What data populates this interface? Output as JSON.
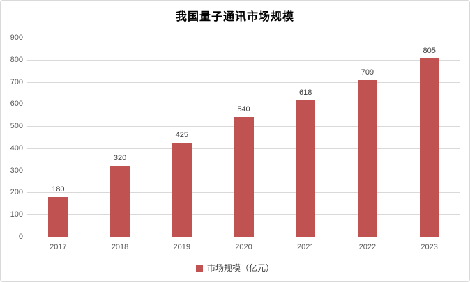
{
  "chart_data": {
    "type": "bar",
    "title": "我国量子通讯市场规模",
    "categories": [
      "2017",
      "2018",
      "2019",
      "2020",
      "2021",
      "2022",
      "2023"
    ],
    "series": [
      {
        "name": "市场规模（亿元）",
        "values": [
          180,
          320,
          425,
          540,
          618,
          709,
          805
        ]
      }
    ],
    "legend": "市场规模（亿元）",
    "legend_position": "bottom",
    "xlabel": "",
    "ylabel": "",
    "ylim": [
      0,
      900
    ],
    "y_tick_step": 100,
    "y_ticks": [
      0,
      100,
      200,
      300,
      400,
      500,
      600,
      700,
      800,
      900
    ],
    "grid": "horizontal",
    "data_labels_shown": true
  },
  "colors": {
    "bar": "#c15252",
    "gridline": "#d9d9d9",
    "axis_text": "#595959",
    "data_label_text": "#404040",
    "title_text": "#000000",
    "frame_border": "#d9d9d9",
    "background": "#ffffff"
  }
}
